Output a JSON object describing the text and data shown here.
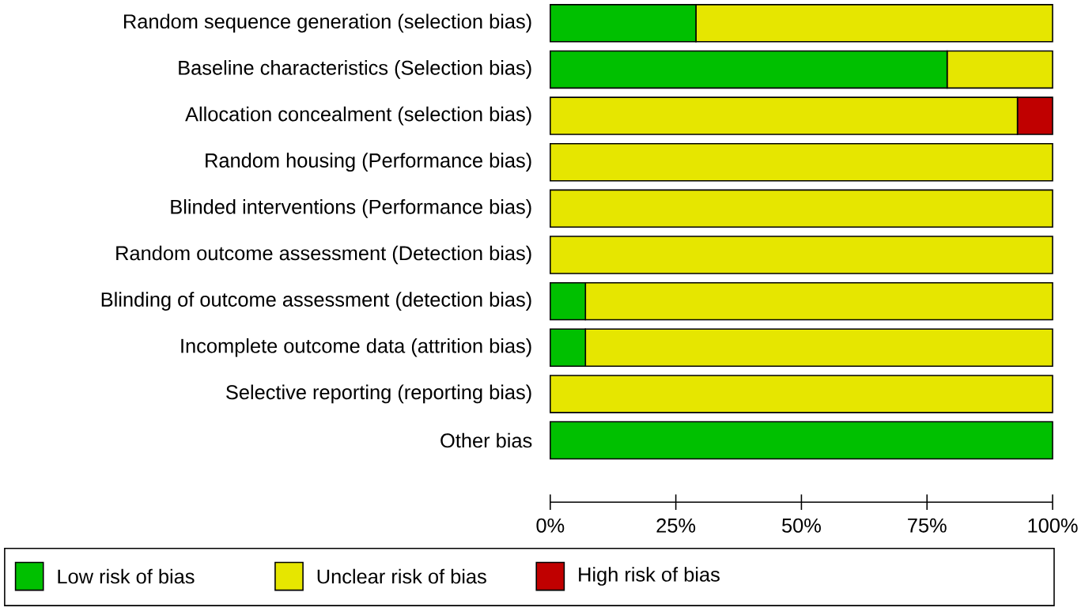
{
  "chart_data": {
    "type": "bar",
    "orientation": "horizontal",
    "stacked": true,
    "categories": [
      "Random sequence generation (selection bias)",
      "Baseline characteristics (Selection bias)",
      "Allocation concealment (selection bias)",
      "Random housing (Performance bias)",
      "Blinded interventions (Performance bias)",
      "Random outcome assessment (Detection bias)",
      "Blinding of outcome assessment (detection bias)",
      "Incomplete outcome data (attrition bias)",
      "Selective reporting (reporting bias)",
      "Other bias"
    ],
    "series": [
      {
        "name": "Low risk of bias",
        "color": "#00c000",
        "values": [
          29,
          79,
          0,
          0,
          0,
          0,
          7,
          7,
          0,
          100
        ]
      },
      {
        "name": "Unclear risk of bias",
        "color": "#e6e600",
        "values": [
          71,
          21,
          93,
          100,
          100,
          100,
          93,
          93,
          100,
          0
        ]
      },
      {
        "name": "High risk of bias",
        "color": "#c00000",
        "values": [
          0,
          0,
          7,
          0,
          0,
          0,
          0,
          0,
          0,
          0
        ]
      }
    ],
    "xlim": [
      0,
      100
    ],
    "xticks": [
      {
        "value": 0,
        "label": "0%"
      },
      {
        "value": 25,
        "label": "25%"
      },
      {
        "value": 50,
        "label": "50%"
      },
      {
        "value": 75,
        "label": "75%"
      },
      {
        "value": 100,
        "label": "100%"
      }
    ],
    "grid": false,
    "legend": "bottom"
  }
}
